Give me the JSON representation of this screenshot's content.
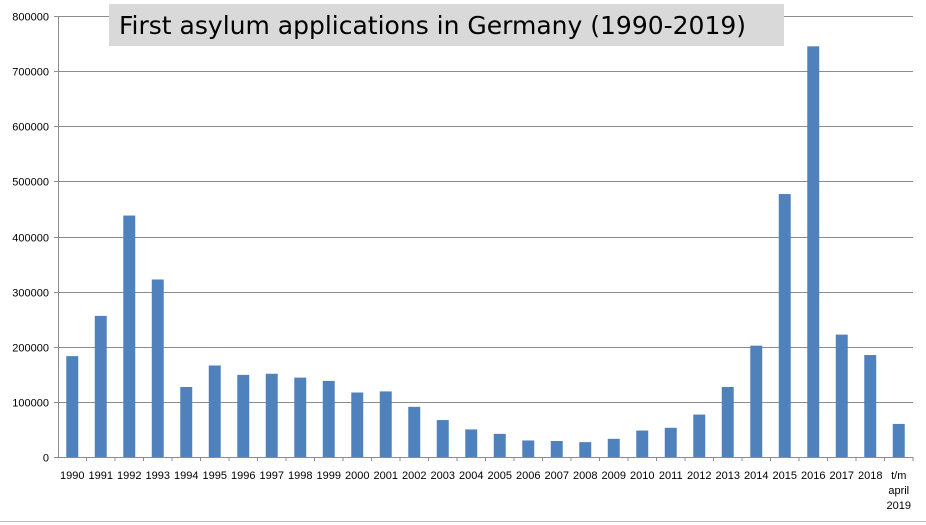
{
  "chart_data": {
    "type": "bar",
    "title": "First asylum applications in Germany (1990-2019)",
    "xlabel": "",
    "ylabel": "",
    "ylim": [
      0,
      800000
    ],
    "y_ticks": [
      0,
      100000,
      200000,
      300000,
      400000,
      500000,
      600000,
      700000,
      800000
    ],
    "y_tick_labels": [
      "0",
      "100000",
      "200000",
      "300000",
      "400000",
      "500000",
      "600000",
      "700000",
      "800000"
    ],
    "grid": true,
    "legend": "none",
    "bar_color": "#4f81bd",
    "categories": [
      "1990",
      "1991",
      "1992",
      "1993",
      "1994",
      "1995",
      "1996",
      "1997",
      "1998",
      "1999",
      "2000",
      "2001",
      "2002",
      "2003",
      "2004",
      "2005",
      "2006",
      "2007",
      "2008",
      "2009",
      "2010",
      "2011",
      "2012",
      "2013",
      "2014",
      "2015",
      "2016",
      "2017",
      "2018",
      "t/m april 2019"
    ],
    "category_label_lines": [
      [
        "1990"
      ],
      [
        "1991"
      ],
      [
        "1992"
      ],
      [
        "1993"
      ],
      [
        "1994"
      ],
      [
        "1995"
      ],
      [
        "1996"
      ],
      [
        "1997"
      ],
      [
        "1998"
      ],
      [
        "1999"
      ],
      [
        "2000"
      ],
      [
        "2001"
      ],
      [
        "2002"
      ],
      [
        "2003"
      ],
      [
        "2004"
      ],
      [
        "2005"
      ],
      [
        "2006"
      ],
      [
        "2007"
      ],
      [
        "2008"
      ],
      [
        "2009"
      ],
      [
        "2010"
      ],
      [
        "2011"
      ],
      [
        "2012"
      ],
      [
        "2013"
      ],
      [
        "2014"
      ],
      [
        "2015"
      ],
      [
        "2016"
      ],
      [
        "2017"
      ],
      [
        "2018"
      ],
      [
        "t/m",
        "april",
        "2019"
      ]
    ],
    "values": [
      183000,
      256000,
      438000,
      322000,
      127000,
      166000,
      149000,
      151000,
      144000,
      138000,
      117000,
      119000,
      91000,
      67000,
      50000,
      42000,
      30000,
      29000,
      27000,
      33000,
      48000,
      53000,
      77000,
      127000,
      202000,
      477000,
      745000,
      222000,
      185000,
      60000
    ]
  }
}
